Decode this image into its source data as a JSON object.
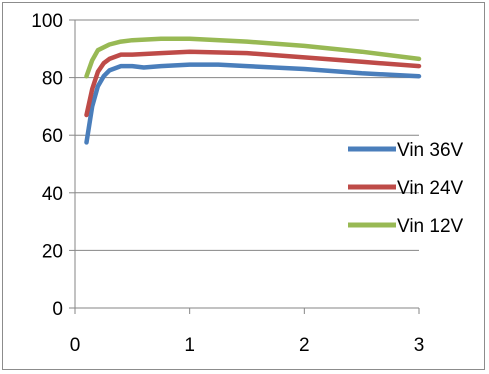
{
  "chart_data": {
    "type": "line",
    "title": "",
    "xlabel": "",
    "ylabel": "",
    "xlim": [
      0,
      3
    ],
    "ylim": [
      0,
      100
    ],
    "x_ticks": [
      "0",
      "1",
      "2",
      "3"
    ],
    "y_ticks": [
      "0",
      "20",
      "40",
      "60",
      "80",
      "100"
    ],
    "grid": "horizontal",
    "legend_position": "right",
    "series": [
      {
        "name": "Vin 36V",
        "color": "#4a7ebb",
        "points": [
          [
            0.1,
            57.5
          ],
          [
            0.15,
            70
          ],
          [
            0.2,
            77
          ],
          [
            0.25,
            80.5
          ],
          [
            0.3,
            82.5
          ],
          [
            0.4,
            84
          ],
          [
            0.5,
            84
          ],
          [
            0.6,
            83.5
          ],
          [
            0.75,
            84
          ],
          [
            1.0,
            84.5
          ],
          [
            1.25,
            84.5
          ],
          [
            1.5,
            84
          ],
          [
            2.0,
            83
          ],
          [
            2.5,
            81.5
          ],
          [
            3.0,
            80.5
          ]
        ]
      },
      {
        "name": "Vin 24V",
        "color": "#be4b48",
        "points": [
          [
            0.1,
            67
          ],
          [
            0.15,
            76
          ],
          [
            0.2,
            82
          ],
          [
            0.25,
            85
          ],
          [
            0.3,
            86.5
          ],
          [
            0.4,
            88
          ],
          [
            0.5,
            88
          ],
          [
            0.75,
            88.5
          ],
          [
            1.0,
            89
          ],
          [
            1.5,
            88.5
          ],
          [
            2.0,
            87
          ],
          [
            2.5,
            85.5
          ],
          [
            3.0,
            84
          ]
        ]
      },
      {
        "name": "Vin 12V",
        "color": "#98b954",
        "points": [
          [
            0.1,
            80.5
          ],
          [
            0.15,
            86
          ],
          [
            0.2,
            89.5
          ],
          [
            0.3,
            91.5
          ],
          [
            0.4,
            92.5
          ],
          [
            0.5,
            93
          ],
          [
            0.75,
            93.5
          ],
          [
            1.0,
            93.5
          ],
          [
            1.5,
            92.5
          ],
          [
            2.0,
            91
          ],
          [
            2.5,
            89
          ],
          [
            3.0,
            86.5
          ]
        ]
      }
    ]
  }
}
